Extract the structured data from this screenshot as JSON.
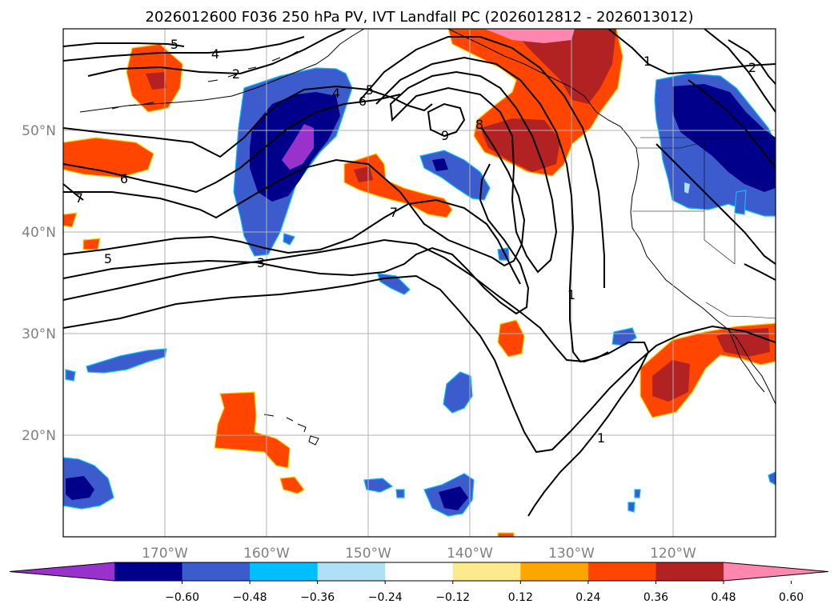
{
  "title": "2026012600 F036 250 hPa PV, IVT Landfall PC (2026012812 - 2026013012)",
  "map": {
    "lon_range": [
      -180,
      -110
    ],
    "lat_range": [
      10,
      60
    ],
    "lon_ticks": [
      "170°W",
      "160°W",
      "150°W",
      "140°W",
      "130°W",
      "120°W"
    ],
    "lat_ticks": [
      "50°N",
      "40°N",
      "30°N",
      "20°N"
    ],
    "grid": true
  },
  "pv_contour_labels": [
    "5",
    "4",
    "2",
    "4",
    "5",
    "6",
    "9",
    "8",
    "1",
    "2",
    "6",
    "7",
    "7",
    "5",
    "3",
    "1",
    "1"
  ],
  "colorbar": {
    "ticks": [
      "−0.60",
      "−0.48",
      "−0.36",
      "−0.24",
      "−0.12",
      "0.12",
      "0.24",
      "0.36",
      "0.48",
      "0.60"
    ],
    "colors": [
      "#9932cc",
      "#00008b",
      "#3c5ccd",
      "#00bfff",
      "#b0e0f6",
      "#ffffff",
      "#fde98e",
      "#ffa500",
      "#ff4500",
      "#b22222",
      "#ff86ae"
    ],
    "extend": "both"
  }
}
